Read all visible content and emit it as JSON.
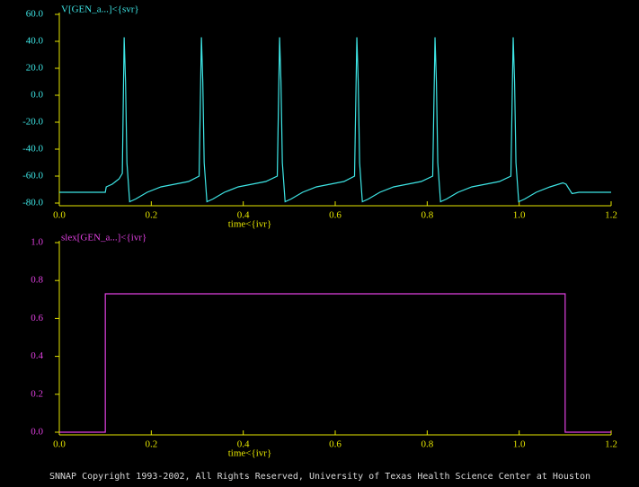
{
  "chart_data": [
    {
      "type": "line",
      "title": "V[GEN_a...]<{svr}",
      "x_label": "time<{ivr}",
      "color": "#3ee6e6",
      "label_color": "#3ee6e6",
      "axis_color": "#e6e600",
      "x": [
        0,
        0.1,
        0.102,
        0.115,
        0.13,
        0.137,
        0.141,
        0.144,
        0.147,
        0.153,
        0.166,
        0.191,
        0.221,
        0.251,
        0.281,
        0.304,
        0.309,
        0.312,
        0.315,
        0.321,
        0.334,
        0.359,
        0.389,
        0.419,
        0.449,
        0.474,
        0.479,
        0.482,
        0.485,
        0.491,
        0.504,
        0.529,
        0.559,
        0.589,
        0.619,
        0.642,
        0.647,
        0.65,
        0.653,
        0.659,
        0.672,
        0.697,
        0.727,
        0.757,
        0.787,
        0.812,
        0.817,
        0.82,
        0.823,
        0.829,
        0.842,
        0.867,
        0.897,
        0.927,
        0.957,
        0.982,
        0.987,
        0.99,
        0.993,
        0.999,
        1.012,
        1.037,
        1.067,
        1.095,
        1.102,
        1.115,
        1.13,
        1.2
      ],
      "values": [
        -72,
        -72,
        -68,
        -66,
        -62,
        -58,
        43,
        10,
        -50,
        -79,
        -77,
        -72,
        -68,
        -66,
        -64,
        -60,
        43,
        10,
        -50,
        -79,
        -77,
        -72,
        -68,
        -66,
        -64,
        -60,
        43,
        10,
        -50,
        -79,
        -77,
        -72,
        -68,
        -66,
        -64,
        -60,
        43,
        10,
        -50,
        -79,
        -77,
        -72,
        -68,
        -66,
        -64,
        -60,
        43,
        10,
        -50,
        -79,
        -77,
        -72,
        -68,
        -66,
        -64,
        -60,
        43,
        10,
        -50,
        -79,
        -77,
        -72,
        -68,
        -65,
        -66,
        -73,
        -72,
        -72
      ],
      "xlim": [
        0,
        1.2
      ],
      "xticks": [
        {
          "value": 0,
          "label": "0.0"
        },
        0.2,
        0.4,
        0.6,
        0.8,
        {
          "value": 1,
          "label": "1.0"
        },
        1.2
      ],
      "ylim": [
        -80,
        60
      ],
      "yticks": [
        {
          "value": 60,
          "label": "60.0"
        },
        {
          "value": 40,
          "label": "40.0"
        },
        {
          "value": 20,
          "label": "20.0"
        },
        {
          "value": 0,
          "label": "0.0"
        },
        {
          "value": -20,
          "label": "-20.0"
        },
        {
          "value": -40,
          "label": "-40.0"
        },
        {
          "value": -60,
          "label": "-60.0"
        },
        {
          "value": -80,
          "label": "-80.0"
        }
      ]
    },
    {
      "type": "line",
      "title": "slex[GEN_a...]<{ivr}",
      "x_label": "time<{ivr}",
      "color": "#e040e0",
      "label_color": "#e040e0",
      "axis_color": "#e6e600",
      "x": [
        0,
        0.1,
        0.1,
        1.1,
        1.1,
        1.2
      ],
      "values": [
        0,
        0,
        0.73,
        0.73,
        0,
        0
      ],
      "xlim": [
        0,
        1.2
      ],
      "xticks": [
        {
          "value": 0,
          "label": "0.0"
        },
        0.2,
        0.4,
        0.6,
        0.8,
        {
          "value": 1,
          "label": "1.0"
        },
        1.2
      ],
      "ylim": [
        0,
        1
      ],
      "yticks": [
        {
          "value": 1,
          "label": "1.0"
        },
        0.8,
        0.6,
        0.4,
        0.2,
        {
          "value": 0,
          "label": "0.0"
        }
      ]
    }
  ],
  "footer": "SNNAP Copyright 1993-2002, All Rights Reserved, University of Texas Health Science Center at Houston"
}
